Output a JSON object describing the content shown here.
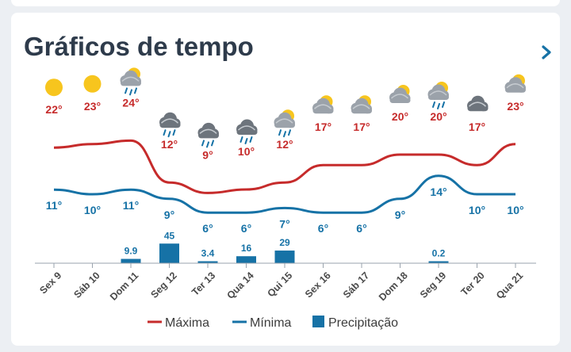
{
  "card": {
    "title": "Gráficos de tempo",
    "next_icon": "chevron-right-icon"
  },
  "colors": {
    "max": "#c62b2b",
    "min": "#1672a6",
    "precip": "#1672a6",
    "title": "#2e3b4b",
    "axis": "#9aa3ad",
    "tick_label": "#4a4a4a"
  },
  "chart_data": {
    "type": "line",
    "categories": [
      "Sex 9",
      "Sáb 10",
      "Dom 11",
      "Seg 12",
      "Ter 13",
      "Qua 14",
      "Qui 15",
      "Sex 16",
      "Sáb 17",
      "Dom 18",
      "Seg 19",
      "Ter 20",
      "Qua 21"
    ],
    "weather_icons": [
      "sun",
      "sun",
      "sun-cloud-rain",
      "cloud-rain",
      "cloud-rain",
      "cloud-rain",
      "sun-cloud-rain",
      "sun-cloud",
      "sun-cloud",
      "sun-cloud",
      "sun-cloud-rain",
      "cloud",
      "sun-cloud"
    ],
    "max_labels": [
      "22°",
      "23°",
      "24°",
      "12°",
      "9°",
      "10°",
      "12°",
      "17°",
      "17°",
      "20°",
      "20°",
      "17°",
      "23°"
    ],
    "min_labels": [
      "11°",
      "10°",
      "11°",
      "9°",
      "6°",
      "6°",
      "7°",
      "6°",
      "6°",
      "9°",
      "14°",
      "10°",
      "10°"
    ],
    "series": [
      {
        "name": "Máxima",
        "type": "line",
        "values": [
          22,
          23,
          24,
          12,
          9,
          10,
          12,
          17,
          17,
          20,
          20,
          17,
          23
        ]
      },
      {
        "name": "Mínima",
        "type": "line",
        "values": [
          11,
          10,
          11,
          9,
          6,
          6,
          7,
          6,
          6,
          9,
          14,
          10,
          10
        ]
      },
      {
        "name": "Precipitação",
        "type": "bar",
        "values": [
          0,
          0,
          9.9,
          45,
          3.4,
          16,
          29,
          0,
          0,
          0,
          0.2,
          0,
          0
        ]
      }
    ],
    "precip_labels": [
      "",
      "",
      "9.9",
      "45",
      "3.4",
      "16",
      "29",
      "",
      "",
      "",
      "0.2",
      "",
      ""
    ],
    "legend": [
      "Máxima",
      "Mínima",
      "Precipitação"
    ],
    "legend_position": "bottom-center",
    "grid": false
  }
}
